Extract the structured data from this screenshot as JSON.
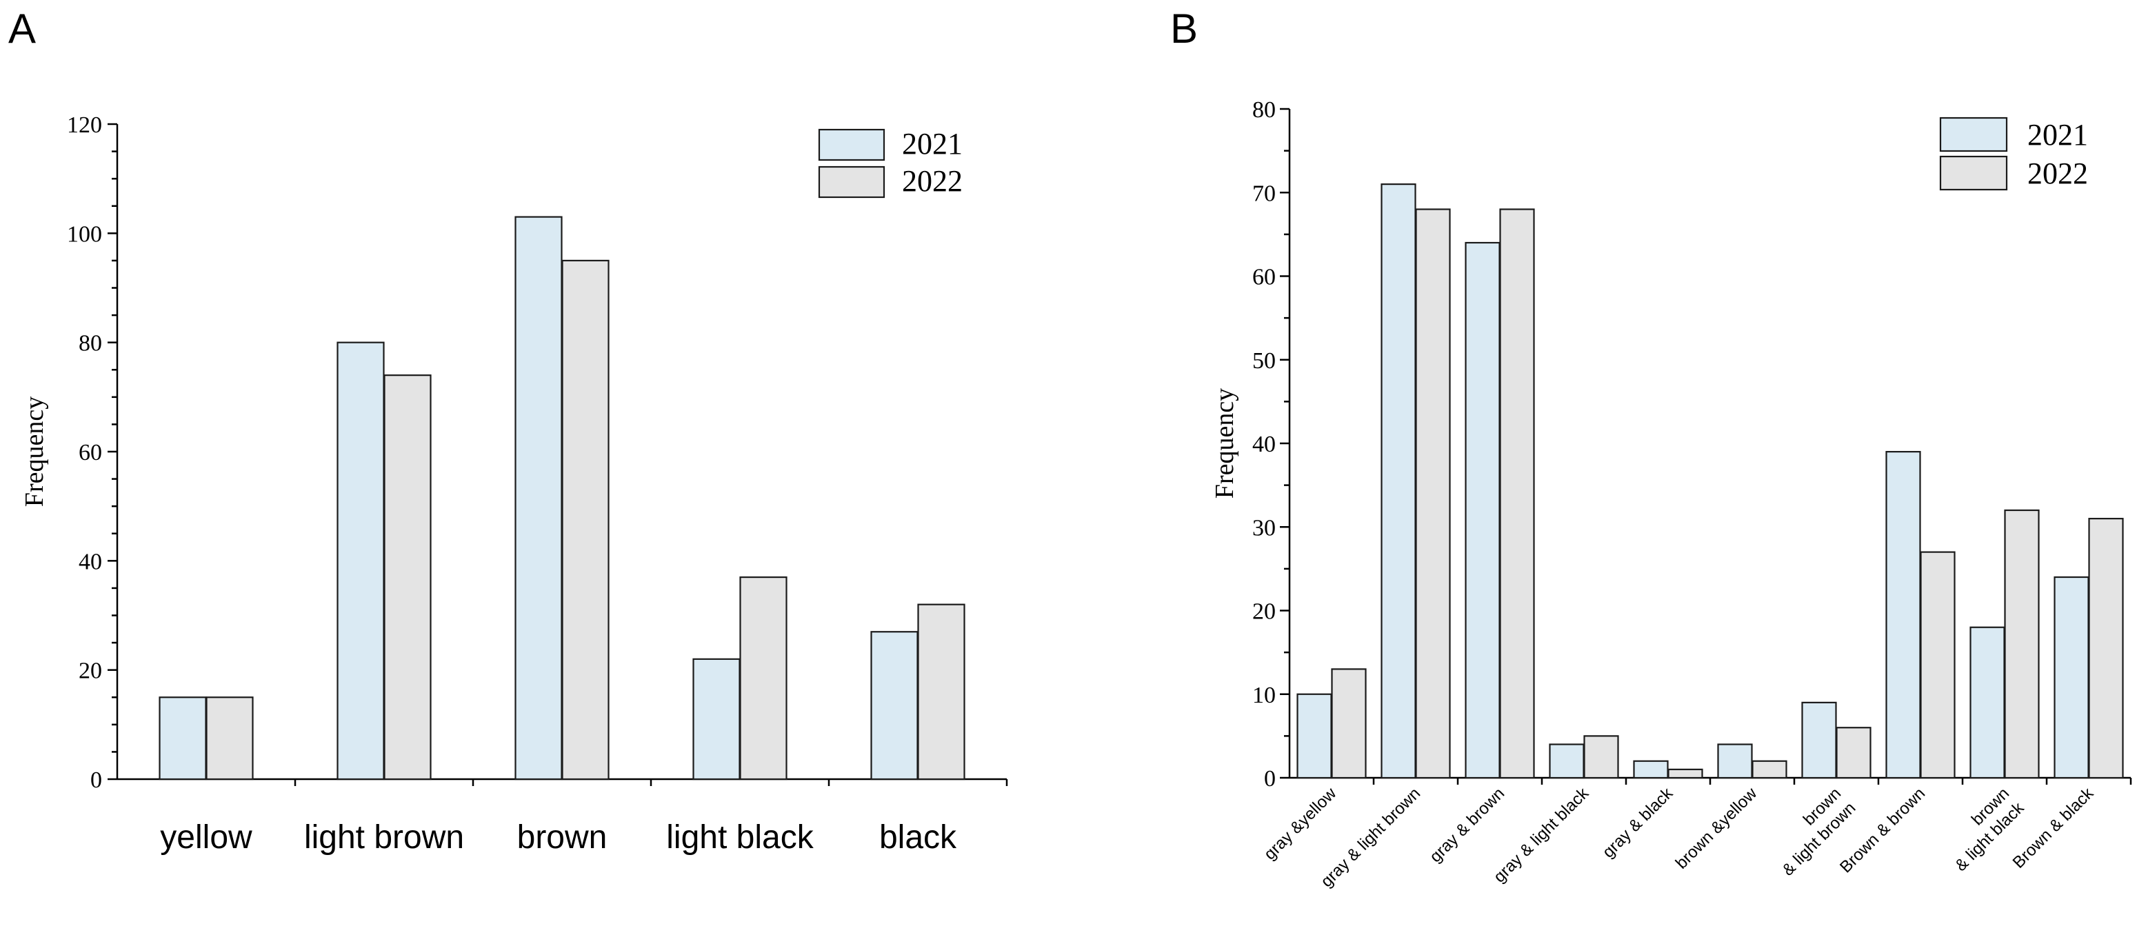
{
  "colors": {
    "series_2021": "#daeaf3",
    "series_2022": "#e4e4e4",
    "stroke": "#1a1a1a"
  },
  "chart_data": [
    {
      "panel": "A",
      "type": "bar",
      "ylabel": "Frequency",
      "xlabel": "",
      "ylim": [
        0,
        120
      ],
      "yticks": [
        "0",
        "20",
        "40",
        "60",
        "80",
        "100",
        "120"
      ],
      "categories": [
        "yellow",
        "light brown",
        "brown",
        "light black",
        "black"
      ],
      "legend": "top-right",
      "series": [
        {
          "name": "2021",
          "values": [
            15,
            80,
            103,
            22,
            27
          ]
        },
        {
          "name": "2022",
          "values": [
            15,
            74,
            95,
            37,
            32
          ]
        }
      ]
    },
    {
      "panel": "B",
      "type": "bar",
      "ylabel": "Frequency",
      "xlabel": "",
      "ylim": [
        0,
        80
      ],
      "yticks": [
        "0",
        "10",
        "20",
        "30",
        "40",
        "50",
        "60",
        "70",
        "80"
      ],
      "categories": [
        [
          "gray &yellow"
        ],
        [
          "gray & light brown"
        ],
        [
          "gray & brown"
        ],
        [
          "gray & light black"
        ],
        [
          "gray & black"
        ],
        [
          "brown &yellow"
        ],
        [
          "brown",
          "& light brown"
        ],
        [
          "Brown & brown"
        ],
        [
          "brown",
          "& light black"
        ],
        [
          "Brown & black"
        ]
      ],
      "legend": "top-right",
      "series": [
        {
          "name": "2021",
          "values": [
            10,
            71,
            64,
            4,
            2,
            4,
            9,
            39,
            18,
            24
          ]
        },
        {
          "name": "2022",
          "values": [
            13,
            68,
            68,
            5,
            1,
            2,
            6,
            27,
            32,
            31
          ]
        }
      ]
    }
  ]
}
